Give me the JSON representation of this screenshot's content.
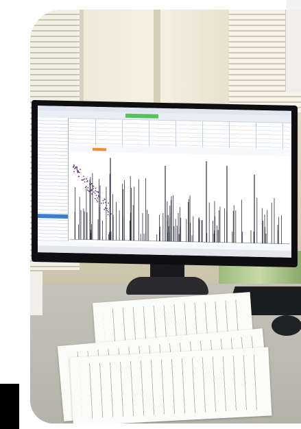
{
  "scene": {
    "subject": "",
    "colors": {
      "wall": "#e2dbc6",
      "monitor_bezel": "#0f0f12",
      "screen_bg": "#f6f8fb",
      "spectrum_line": "#2b2f3a",
      "spectrum_cluster": "#6a3a7a",
      "accent_green": "#57c25a",
      "accent_orange": "#f08c3a",
      "accent_blue": "#3b7fd1"
    }
  }
}
